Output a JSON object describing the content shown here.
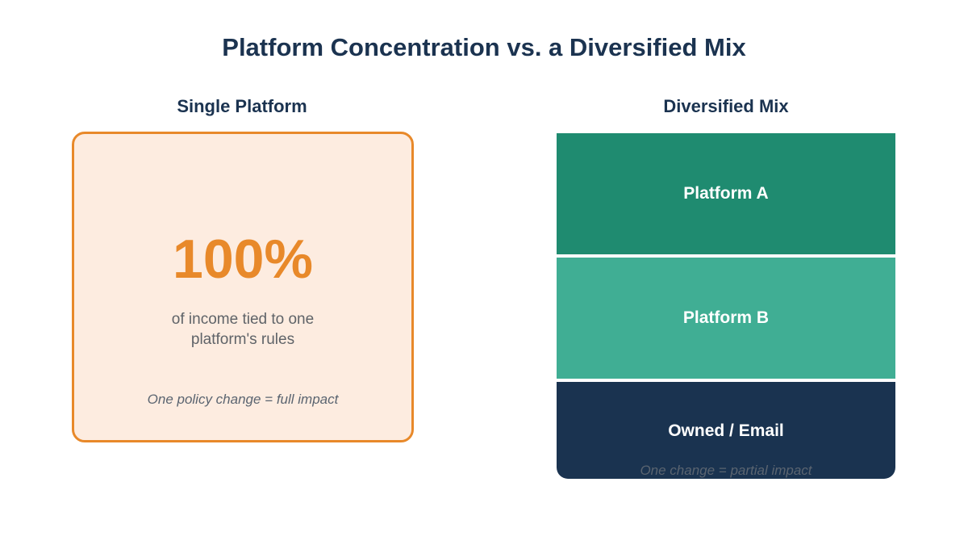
{
  "title": "Platform Concentration vs. a Diversified Mix",
  "single_platform": {
    "heading": "Single Platform",
    "value": "100%",
    "description": "of income tied to one platform's rules",
    "note": "One policy change = full impact"
  },
  "diversified_mix": {
    "heading": "Diversified Mix",
    "segments": [
      {
        "label": "Platform A",
        "color": "#1f8b70"
      },
      {
        "label": "Platform B",
        "color": "#40ae94"
      },
      {
        "label": "Owned / Email",
        "color": "#1a3350"
      }
    ],
    "note": "One change = partial impact"
  },
  "colors": {
    "title": "#1b3350",
    "accent_orange": "#e8892a",
    "card_fill": "#fdece0"
  }
}
